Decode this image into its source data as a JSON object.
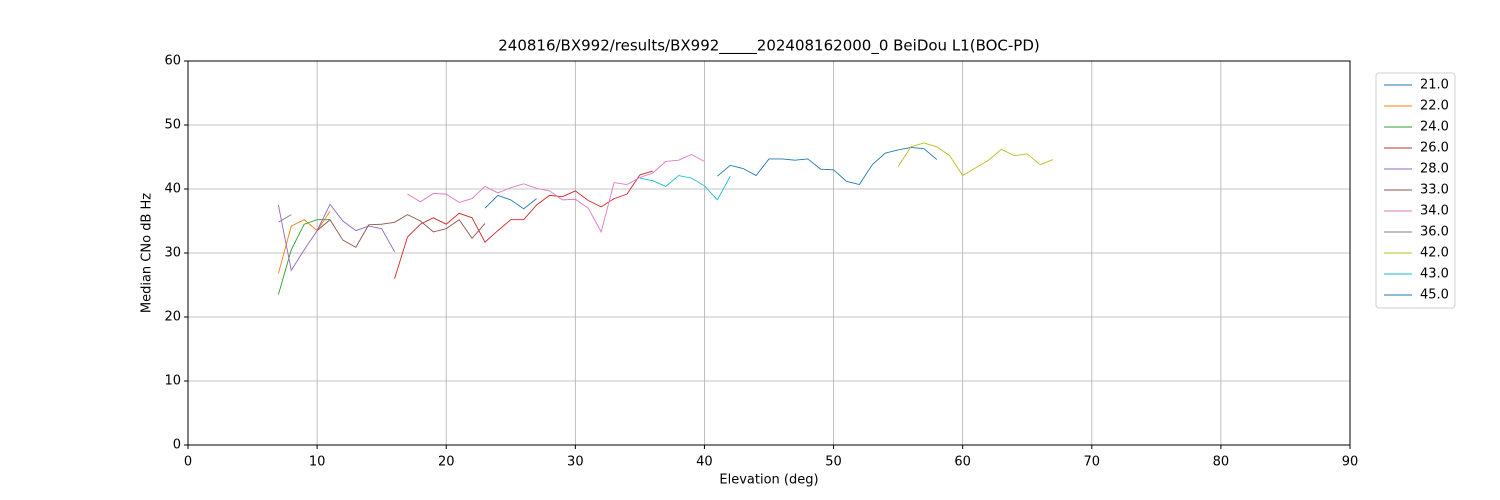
{
  "chart_data": {
    "type": "line",
    "title": "240816/BX992/results/BX992_____202408162000_0 BeiDou L1(BOC-PD)",
    "xlabel": "Elevation (deg)",
    "ylabel": "Median CNo dB Hz",
    "xlim": [
      0,
      90
    ],
    "xticks": [
      0,
      10,
      20,
      30,
      40,
      50,
      60,
      70,
      80,
      90
    ],
    "ylim": [
      0,
      60
    ],
    "yticks": [
      0,
      10,
      20,
      30,
      40,
      50,
      60
    ],
    "grid": true,
    "legend": "outside-upper-right",
    "series": [
      {
        "name": "21.0",
        "color": "#1f77b4",
        "x": [
          41,
          42,
          43,
          44,
          45,
          46,
          47,
          48,
          49,
          50,
          51,
          52,
          53,
          54,
          55,
          56,
          57,
          58
        ],
        "values": [
          42,
          43.7,
          43.2,
          42.1,
          44.7,
          44.7,
          44.5,
          44.7,
          43.1,
          43,
          41.2,
          40.7,
          43.8,
          45.6,
          46.1,
          46.5,
          46.3,
          44.6
        ]
      },
      {
        "name": "22.0",
        "color": "#ff7f0e",
        "x": [
          7,
          8,
          9,
          10,
          11
        ],
        "values": [
          26.8,
          34.2,
          35.2,
          33.5,
          36.5
        ]
      },
      {
        "name": "24.0",
        "color": "#2ca02c",
        "x": [
          7,
          8,
          9,
          10,
          11
        ],
        "values": [
          23.5,
          30.5,
          34.5,
          35.2,
          35.2
        ]
      },
      {
        "name": "26.0",
        "color": "#d62728",
        "x": [
          16,
          17,
          18,
          19,
          20,
          21,
          22,
          23,
          24,
          25,
          26,
          27,
          28,
          29,
          30,
          31,
          32,
          33,
          34,
          35,
          36
        ],
        "values": [
          26,
          32.5,
          34.5,
          35.5,
          34.5,
          36.2,
          35.5,
          31.7,
          33.5,
          35.2,
          35.2,
          37.5,
          39,
          38.8,
          39.7,
          38.2,
          37.2,
          38.5,
          39.2,
          42.2,
          42.8
        ]
      },
      {
        "name": "28.0",
        "color": "#9467bd",
        "x": [
          7,
          8,
          9,
          10,
          11,
          12,
          13,
          14,
          15,
          16
        ],
        "values": [
          37.5,
          27.3,
          30.5,
          33.5,
          37.6,
          35,
          33.5,
          34.2,
          33.8,
          30.2
        ]
      },
      {
        "name": "33.0",
        "color": "#8c564b",
        "x": [
          10,
          11,
          12,
          13,
          14,
          15,
          16,
          17,
          18,
          19,
          20,
          21,
          22,
          23
        ],
        "values": [
          33.5,
          35.2,
          32,
          30.9,
          34.4,
          34.5,
          34.8,
          36,
          35,
          33.3,
          33.8,
          35.2,
          32.3,
          34.6
        ]
      },
      {
        "name": "34.0",
        "color": "#e377c2",
        "x": [
          17,
          18,
          19,
          20,
          21,
          22,
          23,
          24,
          25,
          26,
          27,
          28,
          29,
          30,
          31,
          32,
          33,
          34,
          35,
          36,
          37,
          38,
          39,
          40
        ],
        "values": [
          39.2,
          38,
          39.3,
          39.2,
          37.9,
          38.5,
          40.4,
          39.4,
          40.2,
          40.8,
          40.1,
          39.7,
          38.3,
          38.4,
          37,
          33.3,
          41,
          40.7,
          41.8,
          42.5,
          44.3,
          44.5,
          45.4,
          44.3
        ]
      },
      {
        "name": "36.0",
        "color": "#7f7f7f",
        "x": [
          7,
          8
        ],
        "values": [
          34.8,
          36
        ]
      },
      {
        "name": "42.0",
        "color": "#bcbd22",
        "x": [
          55,
          56,
          57,
          58,
          59,
          60,
          61,
          62,
          63,
          64,
          65,
          66,
          67
        ],
        "values": [
          43.5,
          46.6,
          47.2,
          46.6,
          45.2,
          42.1,
          43.3,
          44.5,
          46.2,
          45.2,
          45.5,
          43.8,
          44.6
        ]
      },
      {
        "name": "43.0",
        "color": "#17becf",
        "x": [
          35,
          36,
          37,
          38,
          39,
          40,
          41,
          42
        ],
        "values": [
          41.7,
          41.3,
          40.4,
          42.1,
          41.7,
          40.5,
          38.3,
          42
        ]
      },
      {
        "name": "45.0",
        "color": "#1f77b4",
        "x": [
          23,
          24,
          25,
          26,
          27
        ],
        "values": [
          37,
          39,
          38.3,
          36.9,
          38.5
        ]
      }
    ]
  }
}
